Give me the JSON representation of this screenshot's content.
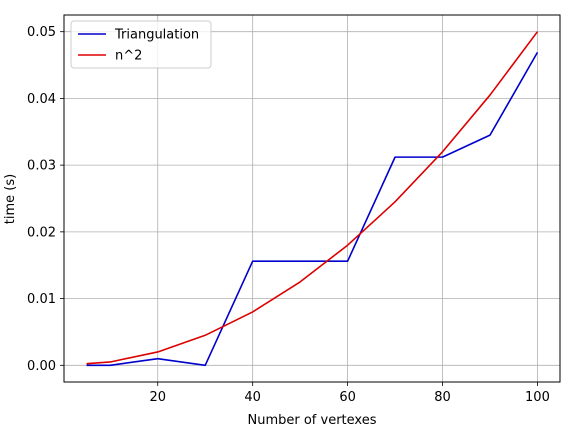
{
  "chart_data": {
    "type": "line",
    "title": "",
    "xlabel": "Number of vertexes",
    "ylabel": "time (s)",
    "xlim": [
      0.25,
      104.75
    ],
    "ylim": [
      -0.0025,
      0.0525
    ],
    "x_ticks": [
      20,
      40,
      60,
      80,
      100
    ],
    "x_tick_labels": [
      "20",
      "40",
      "60",
      "80",
      "100"
    ],
    "y_ticks": [
      0.0,
      0.01,
      0.02,
      0.03,
      0.04,
      0.05
    ],
    "y_tick_labels": [
      "0.00",
      "0.01",
      "0.02",
      "0.03",
      "0.04",
      "0.05"
    ],
    "grid": true,
    "legend_position": "top-left",
    "x": [
      5,
      10,
      20,
      30,
      40,
      50,
      60,
      70,
      80,
      90,
      100
    ],
    "series": [
      {
        "name": "Triangulation",
        "color": "#0000cc",
        "values": [
          0.0,
          0.0,
          0.001,
          0.0,
          0.0156,
          0.0156,
          0.0156,
          0.0312,
          0.0312,
          0.0345,
          0.0469
        ]
      },
      {
        "name": "n^2",
        "color": "#dd0000",
        "values": [
          0.00025,
          0.0005,
          0.002,
          0.0045,
          0.008,
          0.0125,
          0.018,
          0.0245,
          0.032,
          0.0405,
          0.05
        ]
      }
    ]
  }
}
